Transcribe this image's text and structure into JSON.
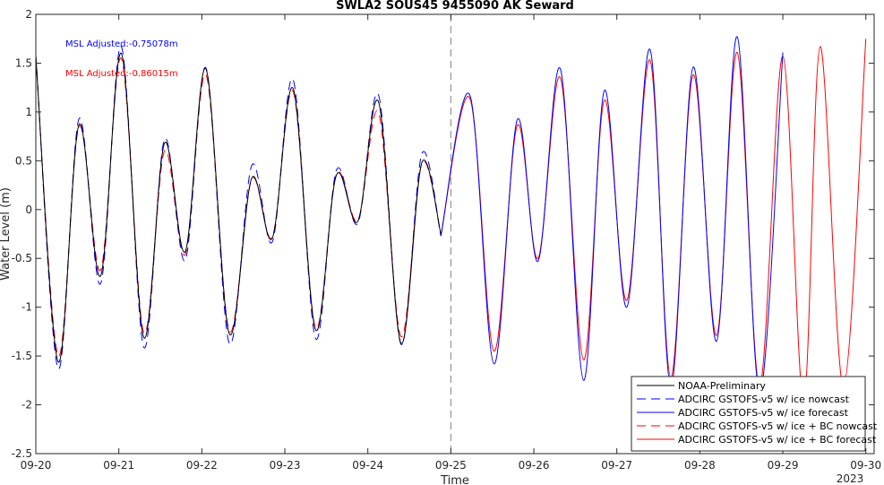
{
  "chart_data": {
    "type": "line",
    "title": "SWLA2 SOUS45 9455090 AK Seward",
    "xlabel": "Time",
    "ylabel": "Water Level (m)",
    "x_unit": "days since 09-20 00:00",
    "xlim": [
      0,
      10.1
    ],
    "ylim": [
      -2.5,
      2
    ],
    "x_ticks": [
      0,
      1,
      2,
      3,
      4,
      5,
      6,
      7,
      8,
      9,
      10
    ],
    "x_tick_labels": [
      "09-20",
      "09-21",
      "09-22",
      "09-23",
      "09-24",
      "09-25",
      "09-26",
      "09-27",
      "09-28",
      "09-29",
      "09-30"
    ],
    "x_year_label": "2023",
    "y_ticks": [
      -2.5,
      -2,
      -1.5,
      -1,
      -0.5,
      0,
      0.5,
      1,
      1.5,
      2
    ],
    "y_tick_labels": [
      "-2.5",
      "-2",
      "-1.5",
      "-1",
      "-0.5",
      "0",
      "0.5",
      "1",
      "1.5",
      "2"
    ],
    "nowcast_forecast_divider_x": 5,
    "grid": false,
    "legend_position": "bottom-right",
    "annotations": [
      {
        "text": "MSL Adjusted:-0.75078m",
        "color": "#0000ff"
      },
      {
        "text": "MSL Adjusted:-0.86015m",
        "color": "#ff0000"
      }
    ],
    "series": [
      {
        "name": "NOAA-Preliminary",
        "color": "#000000",
        "style": "solid",
        "x": [
          0.0,
          0.27,
          0.52,
          0.78,
          1.03,
          1.3,
          1.55,
          1.8,
          2.05,
          2.33,
          2.6,
          2.85,
          3.1,
          3.37,
          3.62,
          3.88,
          4.13,
          4.4,
          4.65,
          4.88
        ],
        "y": [
          1.57,
          -1.56,
          0.87,
          -0.68,
          1.6,
          -1.31,
          0.68,
          -0.43,
          1.44,
          -1.27,
          0.32,
          -0.29,
          1.24,
          -1.23,
          0.35,
          -0.12,
          1.1,
          -1.37,
          0.48,
          -0.25
        ]
      },
      {
        "name": "ADCIRC GSTOFS-v5 w/ ice nowcast",
        "color": "#0000ff",
        "style": "dashed",
        "x": [
          0.0,
          0.27,
          0.52,
          0.78,
          1.03,
          1.3,
          1.55,
          1.8,
          2.05,
          2.33,
          2.6,
          2.85,
          3.1,
          3.37,
          3.62,
          3.88,
          4.13,
          4.4,
          4.65,
          4.88
        ],
        "y": [
          1.58,
          -1.63,
          0.93,
          -0.76,
          1.67,
          -1.41,
          0.72,
          -0.52,
          1.45,
          -1.37,
          0.45,
          -0.33,
          1.33,
          -1.32,
          0.4,
          -0.14,
          1.17,
          -1.38,
          0.57,
          -0.27
        ]
      },
      {
        "name": "ADCIRC GSTOFS-v5 w/ ice forecast",
        "color": "#0000ff",
        "style": "solid",
        "x": [
          4.88,
          5.23,
          5.52,
          5.8,
          6.05,
          6.32,
          6.6,
          6.85,
          7.12,
          7.4,
          7.65,
          7.92,
          8.2,
          8.45,
          8.72,
          9.0
        ],
        "y": [
          -0.27,
          1.17,
          -1.58,
          0.92,
          -0.53,
          1.44,
          -1.75,
          1.22,
          -1.0,
          1.64,
          -1.82,
          1.46,
          -1.35,
          1.77,
          -1.88,
          1.61
        ]
      },
      {
        "name": "ADCIRC GSTOFS-v5 w/ ice + BC nowcast",
        "color": "#ff0000",
        "style": "dashed",
        "x": [
          0.0,
          0.27,
          0.52,
          0.78,
          1.03,
          1.3,
          1.55,
          1.8,
          2.05,
          2.33,
          2.6,
          2.85,
          3.1,
          3.37,
          3.62,
          3.88,
          4.13,
          4.4,
          4.65,
          4.88
        ],
        "y": [
          1.56,
          -1.5,
          0.85,
          -0.62,
          1.55,
          -1.26,
          0.6,
          -0.46,
          1.38,
          -1.24,
          0.31,
          -0.28,
          1.21,
          -1.21,
          0.36,
          -0.11,
          0.99,
          -1.3,
          0.47,
          -0.25
        ]
      },
      {
        "name": "ADCIRC GSTOFS-v5 w/ ice + BC forecast",
        "color": "#ff0000",
        "style": "solid",
        "x": [
          4.88,
          5.23,
          5.52,
          5.8,
          6.05,
          6.32,
          6.6,
          6.85,
          7.12,
          7.4,
          7.65,
          7.92,
          8.2,
          8.45,
          8.72,
          9.0,
          9.25,
          9.45,
          9.73,
          10.0
        ],
        "y": [
          -0.27,
          1.14,
          -1.45,
          0.86,
          -0.5,
          1.35,
          -1.54,
          1.12,
          -0.93,
          1.53,
          -1.72,
          1.38,
          -1.29,
          1.61,
          -1.8,
          1.57,
          -1.97,
          1.67,
          -1.81,
          1.75
        ]
      }
    ]
  }
}
